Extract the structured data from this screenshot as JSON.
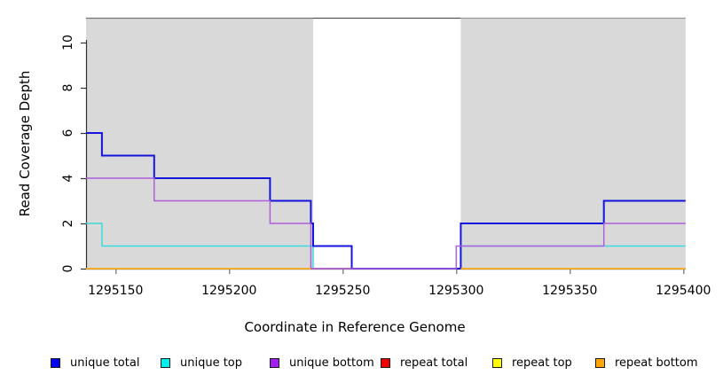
{
  "chart_data": {
    "type": "line",
    "subtype": "step-coverage-plot",
    "title": "",
    "xlabel": "Coordinate in Reference Genome",
    "ylabel": "Read Coverage Depth",
    "xlim": [
      1295137,
      1295401
    ],
    "ylim": [
      0,
      11.1
    ],
    "grid": false,
    "legend_position": "bottom",
    "xticks": {
      "values": [
        1295150,
        1295200,
        1295250,
        1295300,
        1295350,
        1295400
      ],
      "labels": [
        "1295150",
        "1295200",
        "1295250",
        "1295300",
        "1295350",
        "1295400"
      ]
    },
    "yticks": {
      "values": [
        0,
        2,
        4,
        6,
        8,
        10
      ],
      "labels": [
        "0",
        "2",
        "4",
        "6",
        "8",
        "10"
      ]
    },
    "regions": [
      {
        "name": "flank-left",
        "x0": 1295137,
        "x1": 1295237,
        "fill": "#d9d9d9",
        "border_top": "#777777"
      },
      {
        "name": "masked-gap",
        "x0": 1295237,
        "x1": 1295302,
        "fill": "#ffffff",
        "border_top": "#555555"
      },
      {
        "name": "flank-right",
        "x0": 1295302,
        "x1": 1295401,
        "fill": "#d9d9d9",
        "border_top": "#999999"
      }
    ],
    "series": [
      {
        "name": "unique top",
        "color": "#3cdcdc",
        "line_width": 1.5,
        "segments": [
          [
            [
              1295137,
              2
            ],
            [
              1295144,
              1
            ],
            [
              1295237,
              0
            ],
            [
              1295302,
              1
            ],
            [
              1295401,
              1
            ]
          ]
        ]
      },
      {
        "name": "repeat total",
        "color": "#dc3c55",
        "line_width": 1.5,
        "segments": [
          [
            [
              1295236,
              0
            ],
            [
              1295254,
              0
            ]
          ]
        ]
      },
      {
        "name": "unique total",
        "color": "#1414dc",
        "line_width": 2,
        "segments": [
          [
            [
              1295137,
              6
            ],
            [
              1295144,
              5
            ],
            [
              1295167,
              4
            ],
            [
              1295218,
              3
            ],
            [
              1295236,
              2
            ],
            [
              1295237,
              1
            ],
            [
              1295254,
              0
            ],
            [
              1295302,
              2
            ],
            [
              1295365,
              3
            ],
            [
              1295401,
              3
            ]
          ]
        ]
      },
      {
        "name": "unique bottom",
        "color": "#ae5fdc",
        "line_width": 1.5,
        "segments": [
          [
            [
              1295137,
              4
            ],
            [
              1295167,
              3
            ],
            [
              1295218,
              2
            ],
            [
              1295236,
              0
            ],
            [
              1295300,
              1
            ],
            [
              1295365,
              2
            ],
            [
              1295401,
              2
            ]
          ]
        ]
      },
      {
        "name": "repeat top",
        "color": "#ffe800",
        "line_width": 1.5,
        "segments": [
          [
            [
              1295137,
              0
            ],
            [
              1295236,
              0
            ]
          ],
          [
            [
              1295302,
              0
            ],
            [
              1295401,
              0
            ]
          ]
        ]
      },
      {
        "name": "repeat bottom",
        "color": "#ffa420",
        "line_width": 1.5,
        "segments": [
          [
            [
              1295137,
              0
            ],
            [
              1295236,
              0
            ]
          ],
          [
            [
              1295302,
              0
            ],
            [
              1295401,
              0
            ]
          ]
        ]
      }
    ],
    "legend": [
      {
        "label": "unique total",
        "color": "#0000ee"
      },
      {
        "label": "unique top",
        "color": "#00eeee"
      },
      {
        "label": "unique bottom",
        "color": "#a020f0"
      },
      {
        "label": "repeat total",
        "color": "#ee0000"
      },
      {
        "label": "repeat top",
        "color": "#ffff00"
      },
      {
        "label": "repeat bottom",
        "color": "#ffa500"
      }
    ],
    "axis_color": "#333333"
  }
}
